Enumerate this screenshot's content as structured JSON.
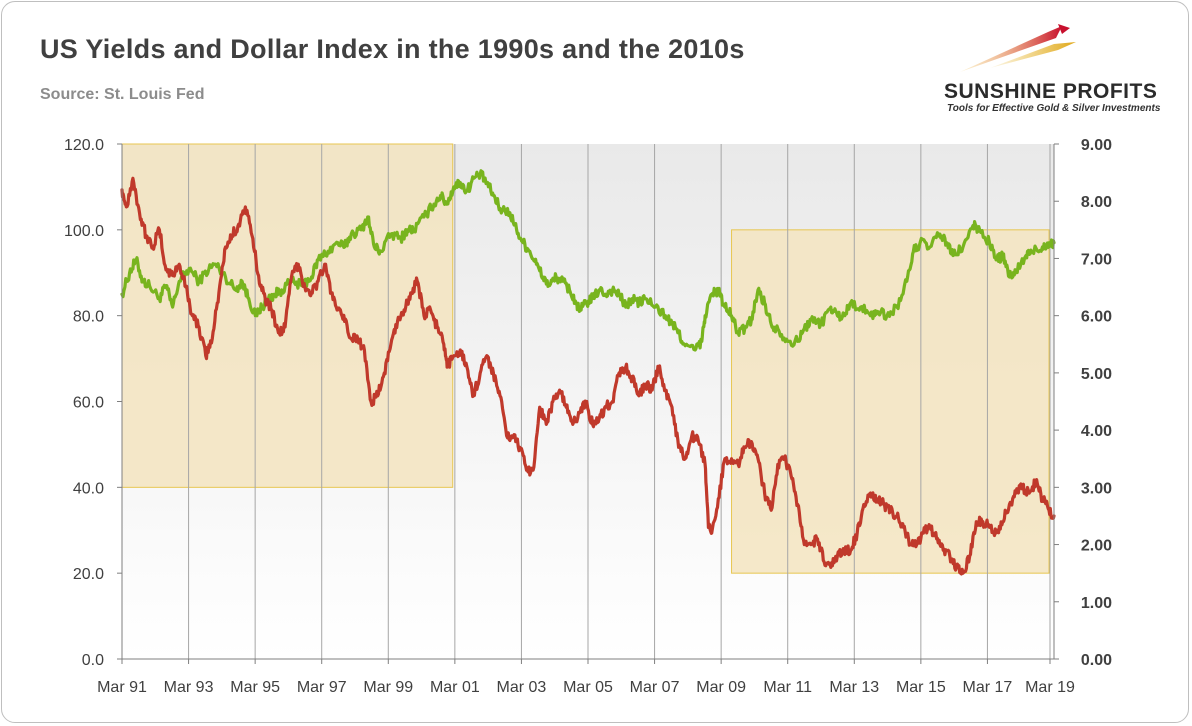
{
  "header": {
    "title": "US Yields and Dollar Index in the 1990s and the 2010s",
    "source": "Source: St. Louis Fed"
  },
  "logo": {
    "name": "SUNSHINE PROFITS",
    "tagline": "Tools for Effective Gold & Silver Investments"
  },
  "colors": {
    "dollar_index": "#78b41e",
    "yield": "#c0392b",
    "highlight_fill": "#f3e4c0",
    "highlight_border": "#e8c650"
  },
  "chart_data": {
    "type": "line",
    "title": "US Yields and Dollar Index in the 1990s and the 2010s",
    "x_tick_labels": [
      "Mar 91",
      "Mar 93",
      "Mar 95",
      "Mar 97",
      "Mar 99",
      "Mar 01",
      "Mar 03",
      "Mar 05",
      "Mar 07",
      "Mar 09",
      "Mar 11",
      "Mar 13",
      "Mar 15",
      "Mar 17",
      "Mar 19"
    ],
    "x_range": [
      1991.17,
      2019.35
    ],
    "y_left": {
      "range": [
        0,
        120
      ],
      "tick_labels": [
        "0.0",
        "20.0",
        "40.0",
        "60.0",
        "80.0",
        "100.0",
        "120.0"
      ]
    },
    "y_right": {
      "range": [
        0,
        9
      ],
      "tick_labels": [
        "0.00",
        "1.00",
        "2.00",
        "3.00",
        "4.00",
        "5.00",
        "6.00",
        "7.00",
        "8.00",
        "9.00"
      ]
    },
    "grid": "vertical",
    "background_gradient": true,
    "highlight_regions": [
      {
        "x": [
          1991.17,
          2001.17
        ],
        "y_left": [
          40,
          120
        ]
      },
      {
        "x": [
          2009.6,
          2019.2
        ],
        "y_left": [
          20,
          100
        ]
      }
    ],
    "series": [
      {
        "axis": "left",
        "color": "#78b41e",
        "points": [
          [
            1991.17,
            85
          ],
          [
            1991.4,
            90
          ],
          [
            1991.6,
            93
          ],
          [
            1991.8,
            88
          ],
          [
            1992.0,
            87
          ],
          [
            1992.3,
            84
          ],
          [
            1992.5,
            87
          ],
          [
            1992.7,
            82
          ],
          [
            1992.9,
            88
          ],
          [
            1993.2,
            91
          ],
          [
            1993.5,
            88
          ],
          [
            1993.8,
            91
          ],
          [
            1994.0,
            92
          ],
          [
            1994.3,
            89
          ],
          [
            1994.6,
            86
          ],
          [
            1994.8,
            88
          ],
          [
            1995.0,
            84
          ],
          [
            1995.2,
            80
          ],
          [
            1995.4,
            82
          ],
          [
            1995.6,
            84
          ],
          [
            1995.8,
            85
          ],
          [
            1996.0,
            86
          ],
          [
            1996.3,
            88
          ],
          [
            1996.6,
            87
          ],
          [
            1996.9,
            89
          ],
          [
            1997.1,
            93
          ],
          [
            1997.4,
            95
          ],
          [
            1997.7,
            97
          ],
          [
            1997.9,
            96
          ],
          [
            1998.1,
            99
          ],
          [
            1998.4,
            100
          ],
          [
            1998.6,
            103
          ],
          [
            1998.8,
            96
          ],
          [
            1999.0,
            95
          ],
          [
            1999.3,
            99
          ],
          [
            1999.6,
            98
          ],
          [
            1999.8,
            100
          ],
          [
            2000.0,
            100
          ],
          [
            2000.3,
            103
          ],
          [
            2000.6,
            106
          ],
          [
            2000.8,
            108
          ],
          [
            2001.0,
            106
          ],
          [
            2001.2,
            110
          ],
          [
            2001.4,
            111
          ],
          [
            2001.6,
            109
          ],
          [
            2001.8,
            112
          ],
          [
            2002.0,
            113
          ],
          [
            2002.2,
            111
          ],
          [
            2002.4,
            108
          ],
          [
            2002.6,
            105
          ],
          [
            2002.9,
            104
          ],
          [
            2003.1,
            100
          ],
          [
            2003.3,
            97
          ],
          [
            2003.5,
            95
          ],
          [
            2003.7,
            92
          ],
          [
            2003.9,
            89
          ],
          [
            2004.1,
            87
          ],
          [
            2004.3,
            89
          ],
          [
            2004.5,
            88
          ],
          [
            2004.7,
            86
          ],
          [
            2004.9,
            83
          ],
          [
            2005.0,
            81
          ],
          [
            2005.2,
            83
          ],
          [
            2005.4,
            84
          ],
          [
            2005.6,
            86
          ],
          [
            2005.8,
            85
          ],
          [
            2006.0,
            86
          ],
          [
            2006.2,
            85
          ],
          [
            2006.4,
            82
          ],
          [
            2006.6,
            84
          ],
          [
            2006.8,
            83
          ],
          [
            2007.0,
            84
          ],
          [
            2007.3,
            82
          ],
          [
            2007.6,
            80
          ],
          [
            2007.8,
            78
          ],
          [
            2008.0,
            76
          ],
          [
            2008.2,
            73
          ],
          [
            2008.5,
            72
          ],
          [
            2008.7,
            74
          ],
          [
            2008.8,
            80
          ],
          [
            2009.0,
            85
          ],
          [
            2009.2,
            86
          ],
          [
            2009.4,
            82
          ],
          [
            2009.6,
            80
          ],
          [
            2009.8,
            76
          ],
          [
            2010.0,
            77
          ],
          [
            2010.2,
            79
          ],
          [
            2010.4,
            86
          ],
          [
            2010.6,
            83
          ],
          [
            2010.8,
            78
          ],
          [
            2011.0,
            77
          ],
          [
            2011.3,
            74
          ],
          [
            2011.6,
            74
          ],
          [
            2011.8,
            77
          ],
          [
            2012.0,
            79
          ],
          [
            2012.3,
            78
          ],
          [
            2012.6,
            82
          ],
          [
            2012.8,
            80
          ],
          [
            2013.0,
            80
          ],
          [
            2013.2,
            83
          ],
          [
            2013.5,
            82
          ],
          [
            2013.8,
            80
          ],
          [
            2014.0,
            81
          ],
          [
            2014.3,
            80
          ],
          [
            2014.6,
            82
          ],
          [
            2014.9,
            88
          ],
          [
            2015.1,
            95
          ],
          [
            2015.3,
            97
          ],
          [
            2015.6,
            96
          ],
          [
            2015.9,
            99
          ],
          [
            2016.1,
            97
          ],
          [
            2016.3,
            94
          ],
          [
            2016.6,
            96
          ],
          [
            2016.9,
            101
          ],
          [
            2017.1,
            100
          ],
          [
            2017.4,
            97
          ],
          [
            2017.6,
            93
          ],
          [
            2017.8,
            94
          ],
          [
            2018.0,
            89
          ],
          [
            2018.2,
            90
          ],
          [
            2018.5,
            94
          ],
          [
            2018.7,
            95
          ],
          [
            2019.0,
            96
          ],
          [
            2019.2,
            97
          ],
          [
            2019.35,
            97
          ]
        ]
      },
      {
        "axis": "right",
        "color": "#c0392b",
        "points": [
          [
            1991.17,
            8.2
          ],
          [
            1991.3,
            7.9
          ],
          [
            1991.5,
            8.4
          ],
          [
            1991.7,
            7.8
          ],
          [
            1991.9,
            7.4
          ],
          [
            1992.1,
            7.2
          ],
          [
            1992.3,
            7.5
          ],
          [
            1992.5,
            6.8
          ],
          [
            1992.7,
            6.7
          ],
          [
            1992.9,
            6.9
          ],
          [
            1993.1,
            6.5
          ],
          [
            1993.3,
            6.0
          ],
          [
            1993.5,
            5.8
          ],
          [
            1993.7,
            5.3
          ],
          [
            1993.9,
            5.6
          ],
          [
            1994.1,
            6.4
          ],
          [
            1994.3,
            7.2
          ],
          [
            1994.5,
            7.4
          ],
          [
            1994.7,
            7.6
          ],
          [
            1994.9,
            7.9
          ],
          [
            1995.1,
            7.4
          ],
          [
            1995.3,
            6.7
          ],
          [
            1995.5,
            6.3
          ],
          [
            1995.7,
            6.1
          ],
          [
            1995.9,
            5.7
          ],
          [
            1996.1,
            5.8
          ],
          [
            1996.3,
            6.7
          ],
          [
            1996.5,
            6.9
          ],
          [
            1996.7,
            6.5
          ],
          [
            1996.9,
            6.4
          ],
          [
            1997.1,
            6.6
          ],
          [
            1997.3,
            6.9
          ],
          [
            1997.5,
            6.4
          ],
          [
            1997.7,
            6.1
          ],
          [
            1997.9,
            5.9
          ],
          [
            1998.1,
            5.6
          ],
          [
            1998.3,
            5.6
          ],
          [
            1998.5,
            5.4
          ],
          [
            1998.7,
            4.5
          ],
          [
            1998.9,
            4.6
          ],
          [
            1999.1,
            5.0
          ],
          [
            1999.3,
            5.5
          ],
          [
            1999.5,
            5.9
          ],
          [
            1999.7,
            6.1
          ],
          [
            1999.9,
            6.4
          ],
          [
            2000.1,
            6.6
          ],
          [
            2000.3,
            6.0
          ],
          [
            2000.5,
            6.1
          ],
          [
            2000.7,
            5.8
          ],
          [
            2000.9,
            5.5
          ],
          [
            2001.0,
            5.1
          ],
          [
            2001.2,
            5.3
          ],
          [
            2001.4,
            5.4
          ],
          [
            2001.6,
            5.1
          ],
          [
            2001.8,
            4.6
          ],
          [
            2002.0,
            5.0
          ],
          [
            2002.2,
            5.3
          ],
          [
            2002.4,
            5.0
          ],
          [
            2002.6,
            4.6
          ],
          [
            2002.8,
            3.9
          ],
          [
            2003.0,
            3.9
          ],
          [
            2003.2,
            3.7
          ],
          [
            2003.4,
            3.3
          ],
          [
            2003.6,
            3.3
          ],
          [
            2003.8,
            4.4
          ],
          [
            2004.0,
            4.1
          ],
          [
            2004.2,
            4.5
          ],
          [
            2004.4,
            4.7
          ],
          [
            2004.6,
            4.4
          ],
          [
            2004.8,
            4.1
          ],
          [
            2005.0,
            4.3
          ],
          [
            2005.2,
            4.5
          ],
          [
            2005.4,
            4.1
          ],
          [
            2005.6,
            4.2
          ],
          [
            2005.8,
            4.4
          ],
          [
            2006.0,
            4.5
          ],
          [
            2006.2,
            5.0
          ],
          [
            2006.4,
            5.1
          ],
          [
            2006.6,
            4.9
          ],
          [
            2006.8,
            4.6
          ],
          [
            2007.0,
            4.8
          ],
          [
            2007.2,
            4.7
          ],
          [
            2007.4,
            5.1
          ],
          [
            2007.6,
            4.7
          ],
          [
            2007.8,
            4.4
          ],
          [
            2008.0,
            3.7
          ],
          [
            2008.2,
            3.5
          ],
          [
            2008.4,
            3.9
          ],
          [
            2008.6,
            3.8
          ],
          [
            2008.8,
            3.4
          ],
          [
            2008.9,
            2.3
          ],
          [
            2009.0,
            2.2
          ],
          [
            2009.2,
            2.8
          ],
          [
            2009.4,
            3.5
          ],
          [
            2009.6,
            3.5
          ],
          [
            2009.8,
            3.4
          ],
          [
            2010.0,
            3.7
          ],
          [
            2010.2,
            3.8
          ],
          [
            2010.4,
            3.5
          ],
          [
            2010.6,
            2.9
          ],
          [
            2010.8,
            2.6
          ],
          [
            2011.0,
            3.4
          ],
          [
            2011.2,
            3.5
          ],
          [
            2011.4,
            3.2
          ],
          [
            2011.6,
            2.7
          ],
          [
            2011.8,
            2.0
          ],
          [
            2012.0,
            2.0
          ],
          [
            2012.2,
            2.1
          ],
          [
            2012.4,
            1.7
          ],
          [
            2012.6,
            1.6
          ],
          [
            2012.8,
            1.8
          ],
          [
            2013.0,
            1.9
          ],
          [
            2013.2,
            1.9
          ],
          [
            2013.4,
            2.2
          ],
          [
            2013.6,
            2.7
          ],
          [
            2013.8,
            2.9
          ],
          [
            2014.0,
            2.8
          ],
          [
            2014.2,
            2.7
          ],
          [
            2014.4,
            2.6
          ],
          [
            2014.6,
            2.5
          ],
          [
            2014.8,
            2.3
          ],
          [
            2015.0,
            2.0
          ],
          [
            2015.2,
            2.0
          ],
          [
            2015.4,
            2.2
          ],
          [
            2015.6,
            2.3
          ],
          [
            2015.8,
            2.1
          ],
          [
            2016.0,
            1.9
          ],
          [
            2016.2,
            1.8
          ],
          [
            2016.4,
            1.6
          ],
          [
            2016.6,
            1.5
          ],
          [
            2016.8,
            1.8
          ],
          [
            2017.0,
            2.4
          ],
          [
            2017.2,
            2.4
          ],
          [
            2017.4,
            2.3
          ],
          [
            2017.6,
            2.2
          ],
          [
            2017.8,
            2.4
          ],
          [
            2018.0,
            2.7
          ],
          [
            2018.2,
            2.9
          ],
          [
            2018.4,
            3.0
          ],
          [
            2018.6,
            2.9
          ],
          [
            2018.8,
            3.1
          ],
          [
            2019.0,
            2.8
          ],
          [
            2019.2,
            2.6
          ],
          [
            2019.35,
            2.5
          ]
        ]
      }
    ]
  }
}
